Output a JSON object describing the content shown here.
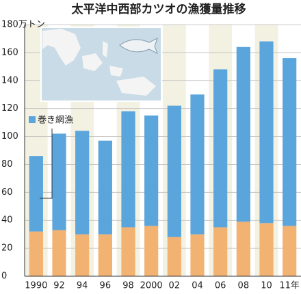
{
  "chart_data": {
    "type": "stacked_bar",
    "title": "太平洋中西部カツオの漁獲量推移",
    "categories": [
      "1990",
      "92",
      "94",
      "96",
      "98",
      "2000",
      "02",
      "04",
      "06",
      "08",
      "10",
      "11年"
    ],
    "series": [
      {
        "color": "#f2b272",
        "values": [
          32,
          33,
          30,
          30,
          35,
          36,
          28,
          30,
          35,
          39,
          38,
          36
        ]
      },
      {
        "name": "巻き網漁",
        "color": "#5aa5dc",
        "values": [
          54,
          69,
          74,
          67,
          83,
          79,
          94,
          100,
          113,
          125,
          130,
          120
        ]
      }
    ],
    "ylim": [
      0,
      180
    ],
    "yticks": [
      0,
      20,
      40,
      60,
      80,
      100,
      120,
      140,
      160,
      {
        "value": 180,
        "label": "180万トン"
      }
    ],
    "grid": true
  }
}
